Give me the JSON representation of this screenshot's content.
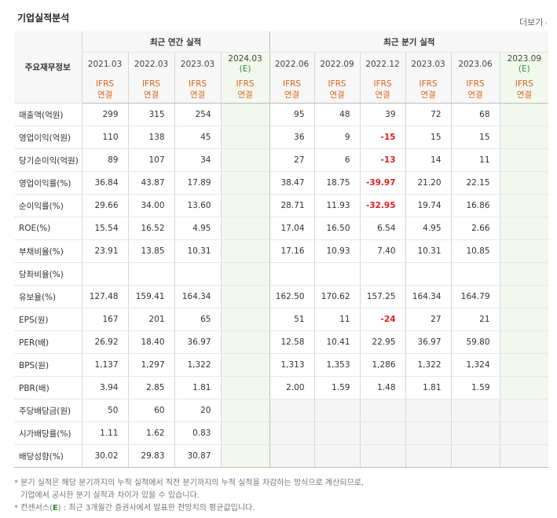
{
  "page": {
    "title": "기업실적분석",
    "more_label": "더보기",
    "chevron": "›"
  },
  "table": {
    "row_header": "주요재무정보",
    "annual_group": "최근 연간 실적",
    "quarter_group": "최근 분기 실적",
    "annual_periods": [
      "2021.03",
      "2022.03",
      "2023.03",
      "2024.03"
    ],
    "quarter_periods": [
      "2022.06",
      "2022.09",
      "2022.12",
      "2023.03",
      "2023.06",
      "2023.09"
    ],
    "estimate_mark": "(E)",
    "ifrs_line1": "IFRS",
    "ifrs_line2": "연결",
    "rows": [
      {
        "label": "매출액(억원)",
        "annual": [
          "299",
          "315",
          "254",
          ""
        ],
        "quarter": [
          "95",
          "48",
          "39",
          "72",
          "68",
          ""
        ]
      },
      {
        "label": "영업이익(억원)",
        "annual": [
          "110",
          "138",
          "45",
          ""
        ],
        "quarter": [
          "36",
          "9",
          "-15",
          "15",
          "15",
          ""
        ]
      },
      {
        "label": "당기순이익(억원)",
        "annual": [
          "89",
          "107",
          "34",
          ""
        ],
        "quarter": [
          "27",
          "6",
          "-13",
          "14",
          "11",
          ""
        ]
      },
      {
        "label": "영업이익률(%)",
        "annual": [
          "36.84",
          "43.87",
          "17.89",
          ""
        ],
        "quarter": [
          "38.47",
          "18.75",
          "-39.97",
          "21.20",
          "22.15",
          ""
        ]
      },
      {
        "label": "순이익률(%)",
        "annual": [
          "29.66",
          "34.00",
          "13.60",
          ""
        ],
        "quarter": [
          "28.71",
          "11.93",
          "-32.95",
          "19.74",
          "16.86",
          ""
        ]
      },
      {
        "label": "ROE(%)",
        "annual": [
          "15.54",
          "16.52",
          "4.95",
          ""
        ],
        "quarter": [
          "17.04",
          "16.50",
          "6.54",
          "4.95",
          "2.66",
          ""
        ]
      },
      {
        "label": "부채비율(%)",
        "annual": [
          "23.91",
          "13.85",
          "10.31",
          ""
        ],
        "quarter": [
          "17.16",
          "10.93",
          "7.40",
          "10.31",
          "10.85",
          ""
        ]
      },
      {
        "label": "당좌비율(%)",
        "annual": [
          "",
          "",
          "",
          ""
        ],
        "quarter": [
          "",
          "",
          "",
          "",
          "",
          ""
        ]
      },
      {
        "label": "유보율(%)",
        "annual": [
          "127.48",
          "159.41",
          "164.34",
          ""
        ],
        "quarter": [
          "162.50",
          "170.62",
          "157.25",
          "164.34",
          "164.79",
          ""
        ]
      },
      {
        "label": "EPS(원)",
        "annual": [
          "167",
          "201",
          "65",
          ""
        ],
        "quarter": [
          "51",
          "11",
          "-24",
          "27",
          "21",
          ""
        ]
      },
      {
        "label": "PER(배)",
        "annual": [
          "26.92",
          "18.40",
          "36.97",
          ""
        ],
        "quarter": [
          "12.58",
          "10.41",
          "22.95",
          "36.97",
          "59.80",
          ""
        ]
      },
      {
        "label": "BPS(원)",
        "annual": [
          "1,137",
          "1,297",
          "1,322",
          ""
        ],
        "quarter": [
          "1,313",
          "1,353",
          "1,286",
          "1,322",
          "1,324",
          ""
        ]
      },
      {
        "label": "PBR(배)",
        "annual": [
          "3.94",
          "2.85",
          "1.81",
          ""
        ],
        "quarter": [
          "2.00",
          "1.59",
          "1.48",
          "1.81",
          "1.59",
          ""
        ]
      },
      {
        "label": "주당배당금(원)",
        "annual": [
          "50",
          "60",
          "20",
          ""
        ],
        "quarter": [
          "",
          "",
          "",
          "",
          "",
          ""
        ]
      },
      {
        "label": "시가배당률(%)",
        "annual": [
          "1.11",
          "1.62",
          "0.83",
          ""
        ],
        "quarter": [
          "",
          "",
          "",
          "",
          "",
          ""
        ]
      },
      {
        "label": "배당성향(%)",
        "annual": [
          "30.02",
          "29.83",
          "30.87",
          ""
        ],
        "quarter": [
          "",
          "",
          "",
          "",
          "",
          ""
        ]
      }
    ],
    "group_starts": [
      3,
      6,
      9,
      13
    ],
    "gray_quarter_rows_from": 13
  },
  "notes": {
    "line1": "* 분기 실적은 해당 분기까지의 누적 실적에서 직전 분기까지의 누적 실적을 차감하는 방식으로 계산되므로,",
    "line2": "기업에서 공시한 분기 실적과 차이가 있을 수 있습니다.",
    "line3_prefix": "* 컨센서스(",
    "line3_mark": "E",
    "line3_suffix": ") : 최근 3개월간 증권사에서 발표한 전망치의 평균값입니다."
  },
  "colors": {
    "ifrs": "#e0641d",
    "negative": "#e51c1c",
    "estimate_bg": "#f3f8ef",
    "estimate_mark": "#2e8b2e"
  }
}
